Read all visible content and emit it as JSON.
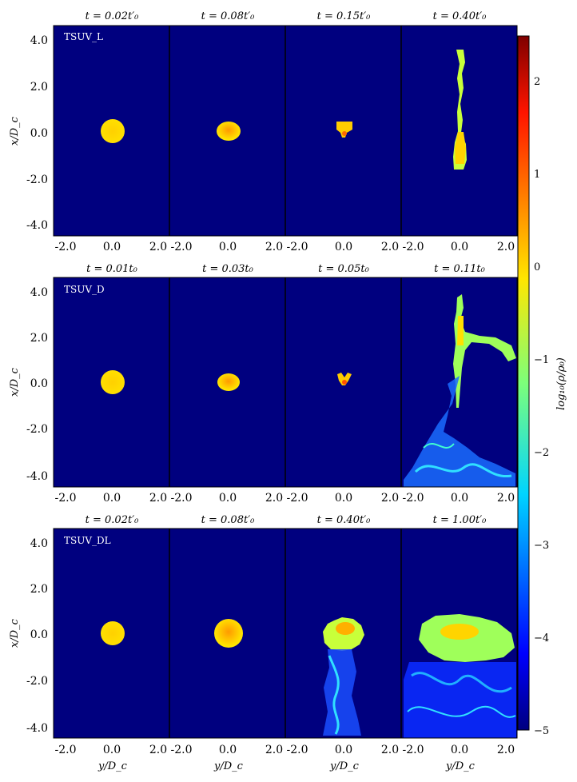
{
  "colorbar": {
    "label": "log₁₀(ρ/ρ₀)",
    "ticks": [
      "2",
      "1",
      "0",
      "−1",
      "−2",
      "−3",
      "−4",
      "−5"
    ],
    "range": [
      -5,
      2.5
    ]
  },
  "x_axis_label": "y/D_c",
  "y_axis_label": "x/D_c",
  "x_tick_labels": [
    "-2.0",
    "0.0",
    "2.0"
  ],
  "y_tick_labels": [
    "4.0",
    "2.0",
    "0.0",
    "-2.0",
    "-4.0"
  ],
  "rows": [
    {
      "run_label": "TSUV_L",
      "times": [
        "t = 0.02t′₀",
        "t = 0.08t′₀",
        "t = 0.15t′₀",
        "t = 0.40t′₀"
      ]
    },
    {
      "run_label": "TSUV_D",
      "times": [
        "t = 0.01t₀",
        "t = 0.03t₀",
        "t = 0.05t₀",
        "t = 0.11t₀"
      ]
    },
    {
      "run_label": "TSUV_DL",
      "times": [
        "t = 0.02t′₀",
        "t = 0.08t′₀",
        "t = 0.40t′₀",
        "t = 1.00t′₀"
      ]
    }
  ],
  "colors": {
    "background_density": "#00007f",
    "cloud": "#ffdd00",
    "core": "#ff9a00"
  }
}
